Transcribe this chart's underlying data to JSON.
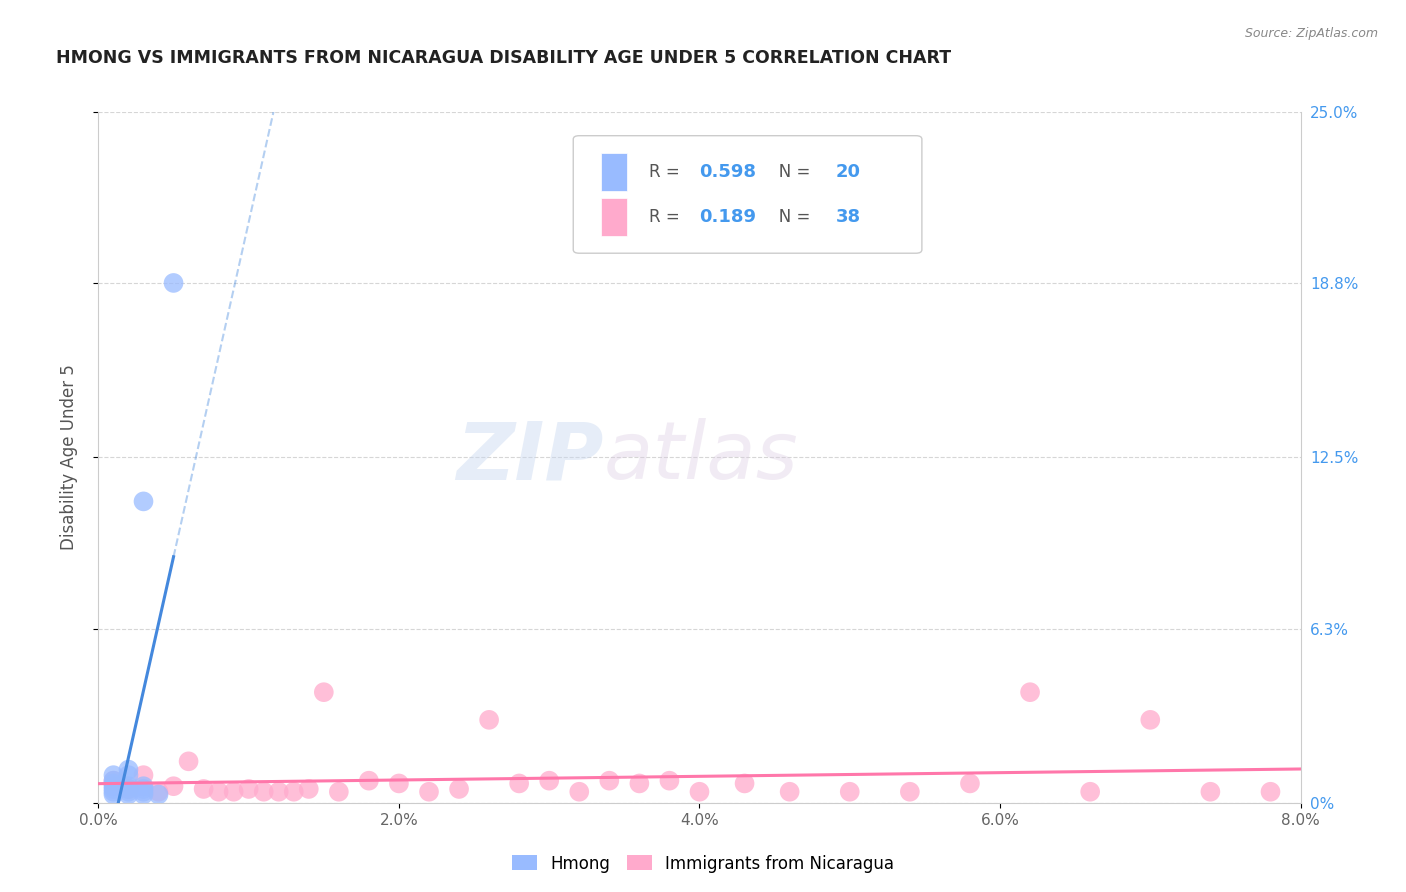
{
  "title": "HMONG VS IMMIGRANTS FROM NICARAGUA DISABILITY AGE UNDER 5 CORRELATION CHART",
  "source": "Source: ZipAtlas.com",
  "ylabel": "Disability Age Under 5",
  "xlim": [
    0.0,
    0.08
  ],
  "ylim": [
    0.0,
    0.25
  ],
  "xtick_labels": [
    "0.0%",
    "2.0%",
    "4.0%",
    "6.0%",
    "8.0%"
  ],
  "xtick_vals": [
    0.0,
    0.02,
    0.04,
    0.06,
    0.08
  ],
  "ytick_vals": [
    0.0,
    0.063,
    0.125,
    0.188,
    0.25
  ],
  "right_ytick_labels": [
    "0%",
    "6.3%",
    "12.5%",
    "18.8%",
    "25.0%"
  ],
  "hmong_R": "0.598",
  "hmong_N": "20",
  "nicaragua_R": "0.189",
  "nicaragua_N": "38",
  "hmong_color": "#99bbff",
  "nicaragua_color": "#ffaacc",
  "hmong_line_color": "#4488dd",
  "nicaragua_line_color": "#ff77aa",
  "background_color": "#ffffff",
  "watermark_zip": "ZIP",
  "watermark_atlas": "atlas",
  "hmong_x": [
    0.001,
    0.001,
    0.001,
    0.001,
    0.001,
    0.001,
    0.001,
    0.002,
    0.002,
    0.002,
    0.002,
    0.002,
    0.002,
    0.003,
    0.003,
    0.003,
    0.003,
    0.004,
    0.003,
    0.005
  ],
  "hmong_y": [
    0.003,
    0.004,
    0.005,
    0.006,
    0.007,
    0.008,
    0.01,
    0.003,
    0.004,
    0.005,
    0.006,
    0.01,
    0.012,
    0.003,
    0.004,
    0.005,
    0.006,
    0.003,
    0.109,
    0.188
  ],
  "nicaragua_x": [
    0.001,
    0.002,
    0.003,
    0.004,
    0.005,
    0.006,
    0.007,
    0.008,
    0.009,
    0.01,
    0.011,
    0.012,
    0.013,
    0.014,
    0.015,
    0.016,
    0.018,
    0.02,
    0.022,
    0.024,
    0.026,
    0.028,
    0.03,
    0.032,
    0.034,
    0.036,
    0.038,
    0.04,
    0.043,
    0.046,
    0.05,
    0.054,
    0.058,
    0.062,
    0.066,
    0.07,
    0.074,
    0.078
  ],
  "nicaragua_y": [
    0.008,
    0.005,
    0.01,
    0.004,
    0.006,
    0.015,
    0.005,
    0.004,
    0.004,
    0.005,
    0.004,
    0.004,
    0.004,
    0.005,
    0.04,
    0.004,
    0.008,
    0.007,
    0.004,
    0.005,
    0.03,
    0.007,
    0.008,
    0.004,
    0.008,
    0.007,
    0.008,
    0.004,
    0.007,
    0.004,
    0.004,
    0.004,
    0.007,
    0.04,
    0.004,
    0.03,
    0.004,
    0.004
  ],
  "legend_entries": [
    "Hmong",
    "Immigrants from Nicaragua"
  ]
}
